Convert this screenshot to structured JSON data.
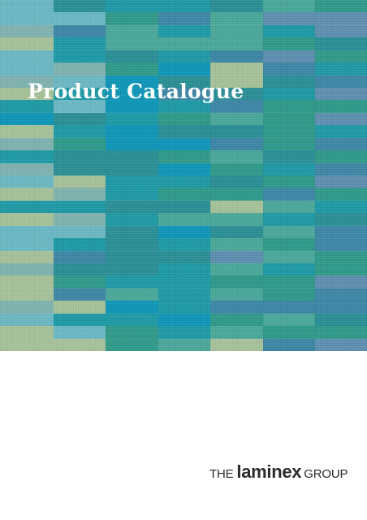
{
  "cover": {
    "title": "Product Catalogue"
  },
  "logo": {
    "prefix": "THE",
    "brand": "laminex",
    "suffix": "GROUP"
  },
  "colors": {
    "background": "#ffffff",
    "title_text": "#ffffff",
    "logo_text": "#2b2b2b",
    "mosaic_palette": [
      "#7fb3b0",
      "#a6c29a",
      "#1e9aa6",
      "#2a8f96",
      "#0f96b8",
      "#6bb8c4",
      "#3d87a6",
      "#2f9a8a",
      "#4aa89a",
      "#5e8fb0"
    ]
  }
}
